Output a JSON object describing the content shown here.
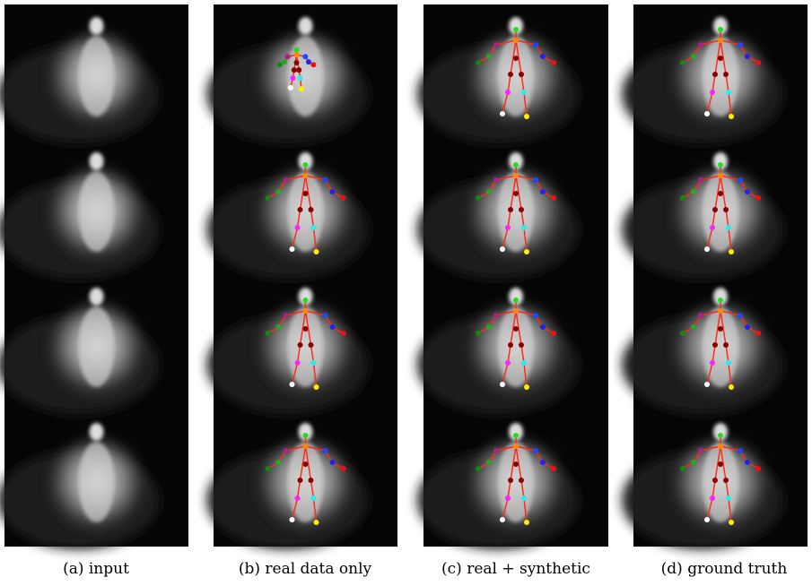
{
  "captions": [
    "(a) input",
    "(b) real data only",
    "(c) real + synthetic",
    "(d) ground truth"
  ]
}
